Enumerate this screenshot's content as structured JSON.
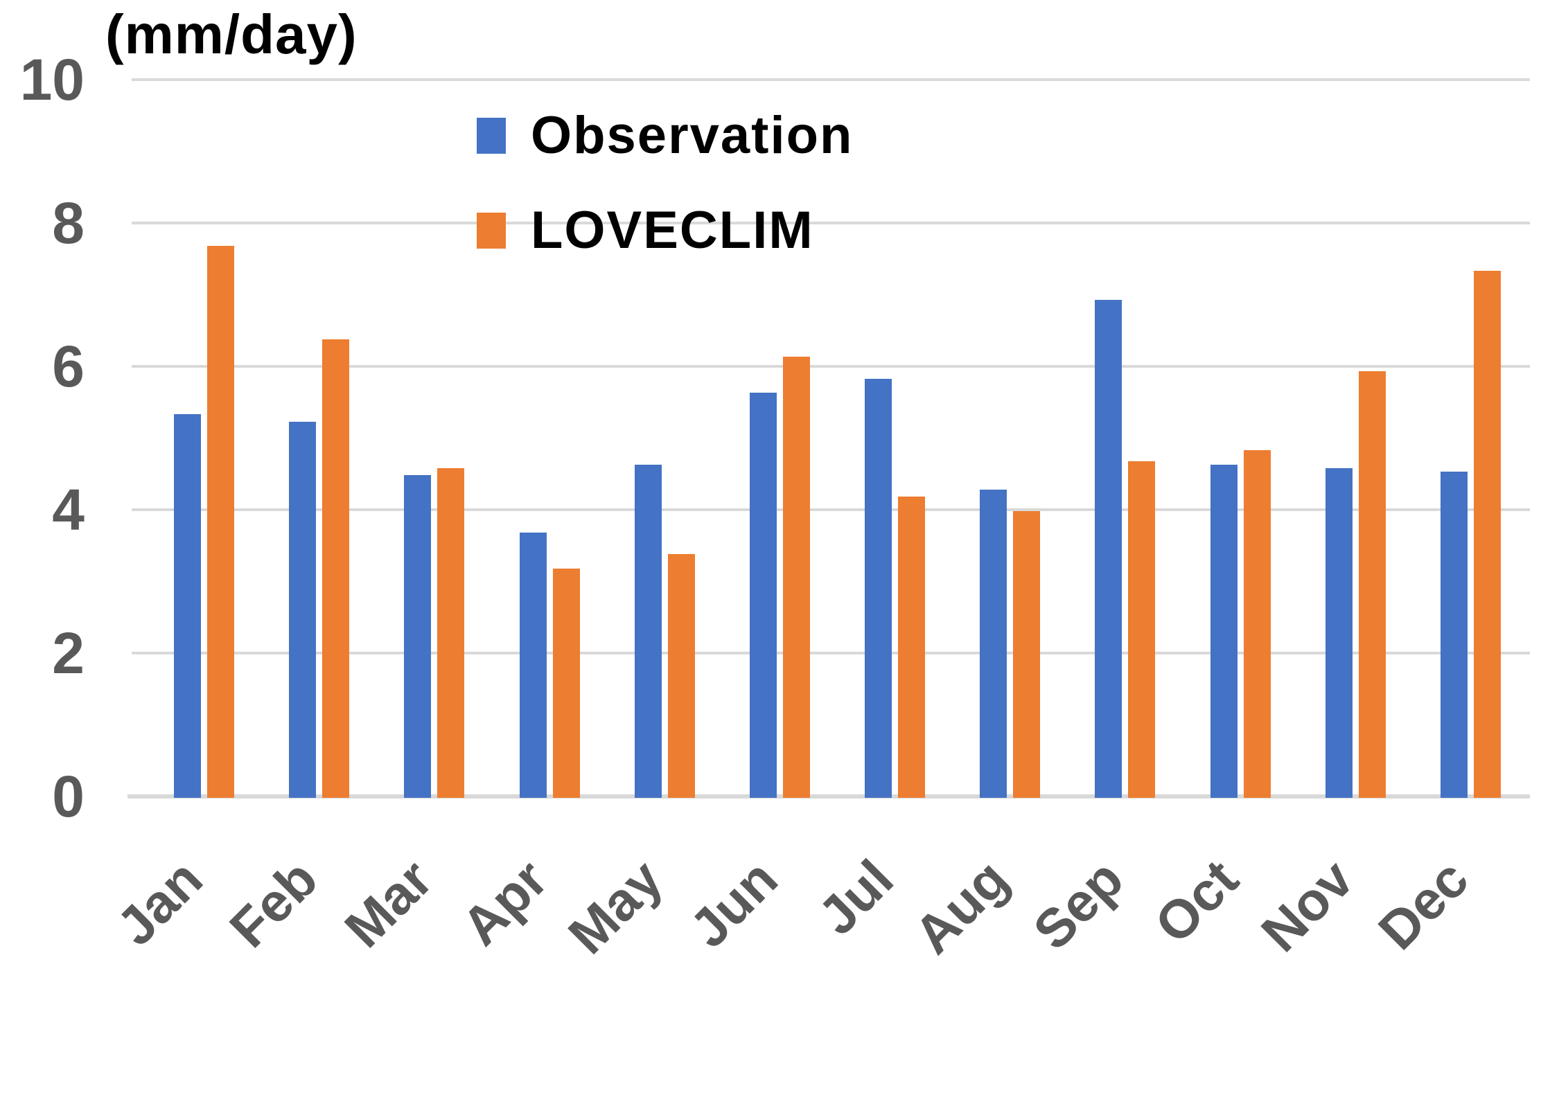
{
  "chart_data": {
    "type": "bar",
    "title": "(mm/day)",
    "categories": [
      "Jan",
      "Feb",
      "Mar",
      "Apr",
      "May",
      "Jun",
      "Jul",
      "Aug",
      "Sep",
      "Oct",
      "Nov",
      "Dec"
    ],
    "series": [
      {
        "name": "Observation",
        "color": "#4472C4",
        "values": [
          5.35,
          5.25,
          4.5,
          3.7,
          4.65,
          5.65,
          5.85,
          4.3,
          6.95,
          4.65,
          4.6,
          4.55
        ]
      },
      {
        "name": "LOVECLIM",
        "color": "#ED7D31",
        "values": [
          7.7,
          6.4,
          4.6,
          3.2,
          3.4,
          6.15,
          4.2,
          4.0,
          4.7,
          4.85,
          5.95,
          7.35
        ]
      }
    ],
    "ylabel": "(mm/day)",
    "ylim": [
      0,
      10
    ],
    "yticks": [
      0,
      2,
      4,
      6,
      8,
      10
    ],
    "grid": true,
    "legend_position": "top-center-inside",
    "colors": {
      "gridline": "#D9D9D9",
      "axis_line": "#D9D9D9",
      "tick_label": "#595959",
      "title_text": "#000000",
      "legend_text": "#000000"
    }
  }
}
